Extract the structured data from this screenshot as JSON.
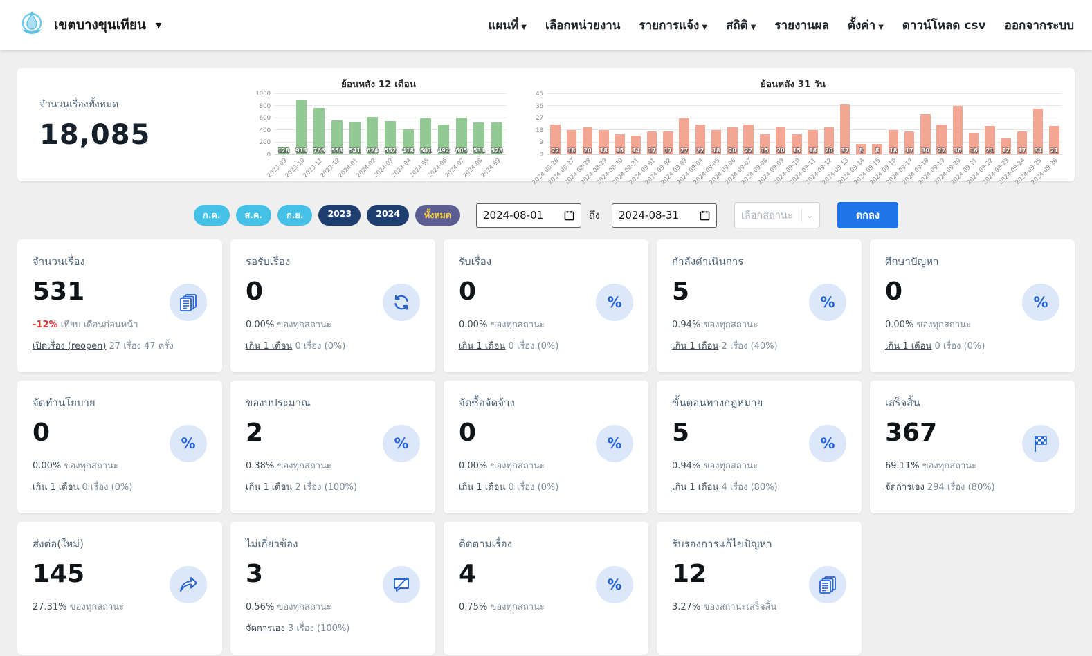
{
  "navbar": {
    "brand": "เขตบางขุนเทียน",
    "items": [
      {
        "label": "แผนที่",
        "dropdown": true
      },
      {
        "label": "เลือกหน่วยงาน",
        "dropdown": false
      },
      {
        "label": "รายการแจ้ง",
        "dropdown": true
      },
      {
        "label": "สถิติ",
        "dropdown": true
      },
      {
        "label": "รายงานผล",
        "dropdown": false
      },
      {
        "label": "ตั้งค่า",
        "dropdown": true
      },
      {
        "label": "ดาวน์โหลด csv",
        "dropdown": false
      },
      {
        "label": "ออกจากระบบ",
        "dropdown": false
      }
    ]
  },
  "summary": {
    "total_label": "จำนวนเรื่องทั้งหมด",
    "total_value": "18,085"
  },
  "chart_data": [
    {
      "type": "bar",
      "title": "ย้อนหลัง 12 เดือน",
      "categories": [
        "2023-09",
        "2023-10",
        "2023-11",
        "2023-12",
        "2024-01",
        "2024-02",
        "2024-03",
        "2024-04",
        "2024-05",
        "2024-06",
        "2024-07",
        "2024-08",
        "2024-09"
      ],
      "values": [
        128,
        913,
        766,
        558,
        541,
        624,
        552,
        418,
        601,
        492,
        605,
        531,
        528
      ],
      "ylim": [
        0,
        1000
      ],
      "yticks": [
        0,
        200,
        400,
        600,
        800,
        1000
      ],
      "bar_color": "#93c993",
      "grid": true,
      "xlabel": "",
      "ylabel": ""
    },
    {
      "type": "bar",
      "title": "ย้อนหลัง 31 วัน",
      "categories": [
        "2024-08-26",
        "2024-08-27",
        "2024-08-28",
        "2024-08-29",
        "2024-08-30",
        "2024-08-31",
        "2024-09-01",
        "2024-09-02",
        "2024-09-03",
        "2024-09-04",
        "2024-09-05",
        "2024-09-06",
        "2024-09-07",
        "2024-09-08",
        "2024-09-09",
        "2024-09-10",
        "2024-09-11",
        "2024-09-12",
        "2024-09-13",
        "2024-09-14",
        "2024-09-15",
        "2024-09-16",
        "2024-09-17",
        "2024-09-18",
        "2024-09-19",
        "2024-09-20",
        "2024-09-21",
        "2024-09-22",
        "2024-09-23",
        "2024-09-24",
        "2024-09-25",
        "2024-09-26"
      ],
      "values": [
        22,
        18,
        20,
        18,
        15,
        14,
        17,
        17,
        27,
        22,
        18,
        20,
        22,
        15,
        20,
        15,
        18,
        20,
        37,
        8,
        8,
        18,
        17,
        30,
        22,
        36,
        16,
        21,
        12,
        17,
        34,
        21
      ],
      "ylim": [
        0,
        45
      ],
      "yticks": [
        0,
        9,
        18,
        27,
        36,
        45
      ],
      "bar_color": "#f3a globalization693",
      "grid": true,
      "xlabel": "",
      "ylabel": ""
    }
  ],
  "filters": {
    "pills": [
      {
        "label": "ก.ค.",
        "bg": "#45c1e8",
        "fg": "#ffffff"
      },
      {
        "label": "ส.ค.",
        "bg": "#45c1e8",
        "fg": "#ffffff"
      },
      {
        "label": "ก.ย.",
        "bg": "#45c1e8",
        "fg": "#ffffff"
      },
      {
        "label": "2023",
        "bg": "#1e3e6f",
        "fg": "#ffffff"
      },
      {
        "label": "2024",
        "bg": "#1e3e6f",
        "fg": "#ffffff"
      },
      {
        "label": "ทั้งหมด",
        "bg": "#5c5d93",
        "fg": "#ffd43b"
      }
    ],
    "date_from": "2024-08-01",
    "to_label": "ถึง",
    "date_to": "2024-08-31",
    "status_placeholder": "เลือกสถานะ",
    "submit_label": "ตกลง",
    "submit_color": "#1f75e8"
  },
  "cards": [
    {
      "title": "จำนวนเรื่อง",
      "value": "531",
      "icon": "documents",
      "stat": "-12%",
      "stat_red": true,
      "stat_suffix": "เทียบ เดือนก่อนหน้า",
      "link": "เปิดเรื่อง (reopen)",
      "link_suffix": "27 เรื่อง 47 ครั้ง"
    },
    {
      "title": "รอรับเรื่อง",
      "value": "0",
      "icon": "refresh",
      "stat": "0.00%",
      "stat_red": false,
      "stat_suffix": "ของทุกสถานะ",
      "link": "เกิน 1 เดือน",
      "link_suffix": "0 เรื่อง (0%)"
    },
    {
      "title": "รับเรื่อง",
      "value": "0",
      "icon": "percent",
      "stat": "0.00%",
      "stat_red": false,
      "stat_suffix": "ของทุกสถานะ",
      "link": "เกิน 1 เดือน",
      "link_suffix": "0 เรื่อง (0%)"
    },
    {
      "title": "กำลังดำเนินการ",
      "value": "5",
      "icon": "percent",
      "stat": "0.94%",
      "stat_red": false,
      "stat_suffix": "ของทุกสถานะ",
      "link": "เกิน 1 เดือน",
      "link_suffix": "2 เรื่อง (40%)"
    },
    {
      "title": "ศึกษาปัญหา",
      "value": "0",
      "icon": "percent",
      "stat": "0.00%",
      "stat_red": false,
      "stat_suffix": "ของทุกสถานะ",
      "link": "เกิน 1 เดือน",
      "link_suffix": "0 เรื่อง (0%)"
    },
    {
      "title": "จัดทำนโยบาย",
      "value": "0",
      "icon": "percent",
      "stat": "0.00%",
      "stat_red": false,
      "stat_suffix": "ของทุกสถานะ",
      "link": "เกิน 1 เดือน",
      "link_suffix": "0 เรื่อง (0%)"
    },
    {
      "title": "ของบประมาณ",
      "value": "2",
      "icon": "percent",
      "stat": "0.38%",
      "stat_red": false,
      "stat_suffix": "ของทุกสถานะ",
      "link": "เกิน 1 เดือน",
      "link_suffix": "2 เรื่อง (100%)"
    },
    {
      "title": "จัดซื้อจัดจ้าง",
      "value": "0",
      "icon": "percent",
      "stat": "0.00%",
      "stat_red": false,
      "stat_suffix": "ของทุกสถานะ",
      "link": "เกิน 1 เดือน",
      "link_suffix": "0 เรื่อง (0%)"
    },
    {
      "title": "ขั้นตอนทางกฎหมาย",
      "value": "5",
      "icon": "percent",
      "stat": "0.94%",
      "stat_red": false,
      "stat_suffix": "ของทุกสถานะ",
      "link": "เกิน 1 เดือน",
      "link_suffix": "4 เรื่อง (80%)"
    },
    {
      "title": "เสร็จสิ้น",
      "value": "367",
      "icon": "flag",
      "stat": "69.11%",
      "stat_red": false,
      "stat_suffix": "ของทุกสถานะ",
      "link": "จัดการเอง",
      "link_suffix": "294 เรื่อง (80%)"
    },
    {
      "title": "ส่งต่อ(ใหม่)",
      "value": "145",
      "icon": "share",
      "stat": "27.31%",
      "stat_red": false,
      "stat_suffix": "ของทุกสถานะ",
      "link": null,
      "link_suffix": null
    },
    {
      "title": "ไม่เกี่ยวข้อง",
      "value": "3",
      "icon": "chat-off",
      "stat": "0.56%",
      "stat_red": false,
      "stat_suffix": "ของทุกสถานะ",
      "link": "จัดการเอง",
      "link_suffix": "3 เรื่อง (100%)"
    },
    {
      "title": "ติดตามเรื่อง",
      "value": "4",
      "icon": "percent",
      "stat": "0.75%",
      "stat_red": false,
      "stat_suffix": "ของทุกสถานะ",
      "link": null,
      "link_suffix": null
    },
    {
      "title": "รับรองการแก้ไขปัญหา",
      "value": "12",
      "icon": "documents",
      "stat": "3.27%",
      "stat_red": false,
      "stat_suffix": "ของสถานะเสร็จสิ้น",
      "link": null,
      "link_suffix": null
    }
  ]
}
